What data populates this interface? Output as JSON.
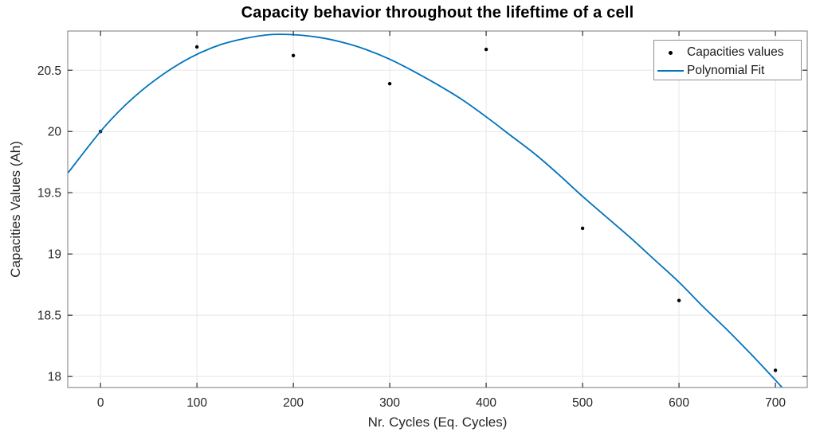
{
  "chart_data": {
    "type": "scatter-line",
    "title": "Capacity behavior throughout the lifeftime of a cell",
    "xlabel": "Nr. Cycles (Eq. Cycles)",
    "ylabel": "Capacities Values (Ah)",
    "xlim": [
      -34,
      733
    ],
    "ylim": [
      17.91,
      20.82
    ],
    "x_ticks": [
      0,
      100,
      200,
      300,
      400,
      500,
      600,
      700
    ],
    "y_ticks": [
      18,
      18.5,
      19,
      19.5,
      20,
      20.5
    ],
    "grid": true,
    "legend_position": "top-right",
    "series": [
      {
        "name": "Capacities values",
        "type": "scatter",
        "marker": "dot",
        "color": "#000000",
        "points": [
          [
            0,
            20.0
          ],
          [
            100,
            20.69
          ],
          [
            200,
            20.62
          ],
          [
            300,
            20.39
          ],
          [
            400,
            20.67
          ],
          [
            500,
            19.21
          ],
          [
            600,
            18.62
          ],
          [
            700,
            18.05
          ]
        ]
      },
      {
        "name": "Polynomial Fit",
        "type": "line",
        "color": "#0072BD",
        "points": [
          [
            -34,
            19.66
          ],
          [
            0,
            20.0
          ],
          [
            25,
            20.21
          ],
          [
            50,
            20.38
          ],
          [
            75,
            20.52
          ],
          [
            100,
            20.63
          ],
          [
            125,
            20.71
          ],
          [
            150,
            20.76
          ],
          [
            175,
            20.79
          ],
          [
            200,
            20.79
          ],
          [
            225,
            20.77
          ],
          [
            250,
            20.73
          ],
          [
            275,
            20.67
          ],
          [
            300,
            20.59
          ],
          [
            325,
            20.49
          ],
          [
            350,
            20.38
          ],
          [
            375,
            20.26
          ],
          [
            400,
            20.12
          ],
          [
            425,
            19.97
          ],
          [
            450,
            19.82
          ],
          [
            475,
            19.65
          ],
          [
            500,
            19.47
          ],
          [
            525,
            19.3
          ],
          [
            550,
            19.13
          ],
          [
            575,
            18.95
          ],
          [
            600,
            18.77
          ],
          [
            625,
            18.57
          ],
          [
            650,
            18.38
          ],
          [
            675,
            18.18
          ],
          [
            700,
            17.97
          ],
          [
            707,
            17.91
          ]
        ]
      }
    ]
  },
  "colors": {
    "fit_line": "#0072BD",
    "marker": "#000000",
    "grid": "#e7e7e7",
    "axis_box": "#8f8f8f",
    "tick": "#3d3d3d",
    "tick_text": "#262626",
    "background": "#ffffff"
  }
}
